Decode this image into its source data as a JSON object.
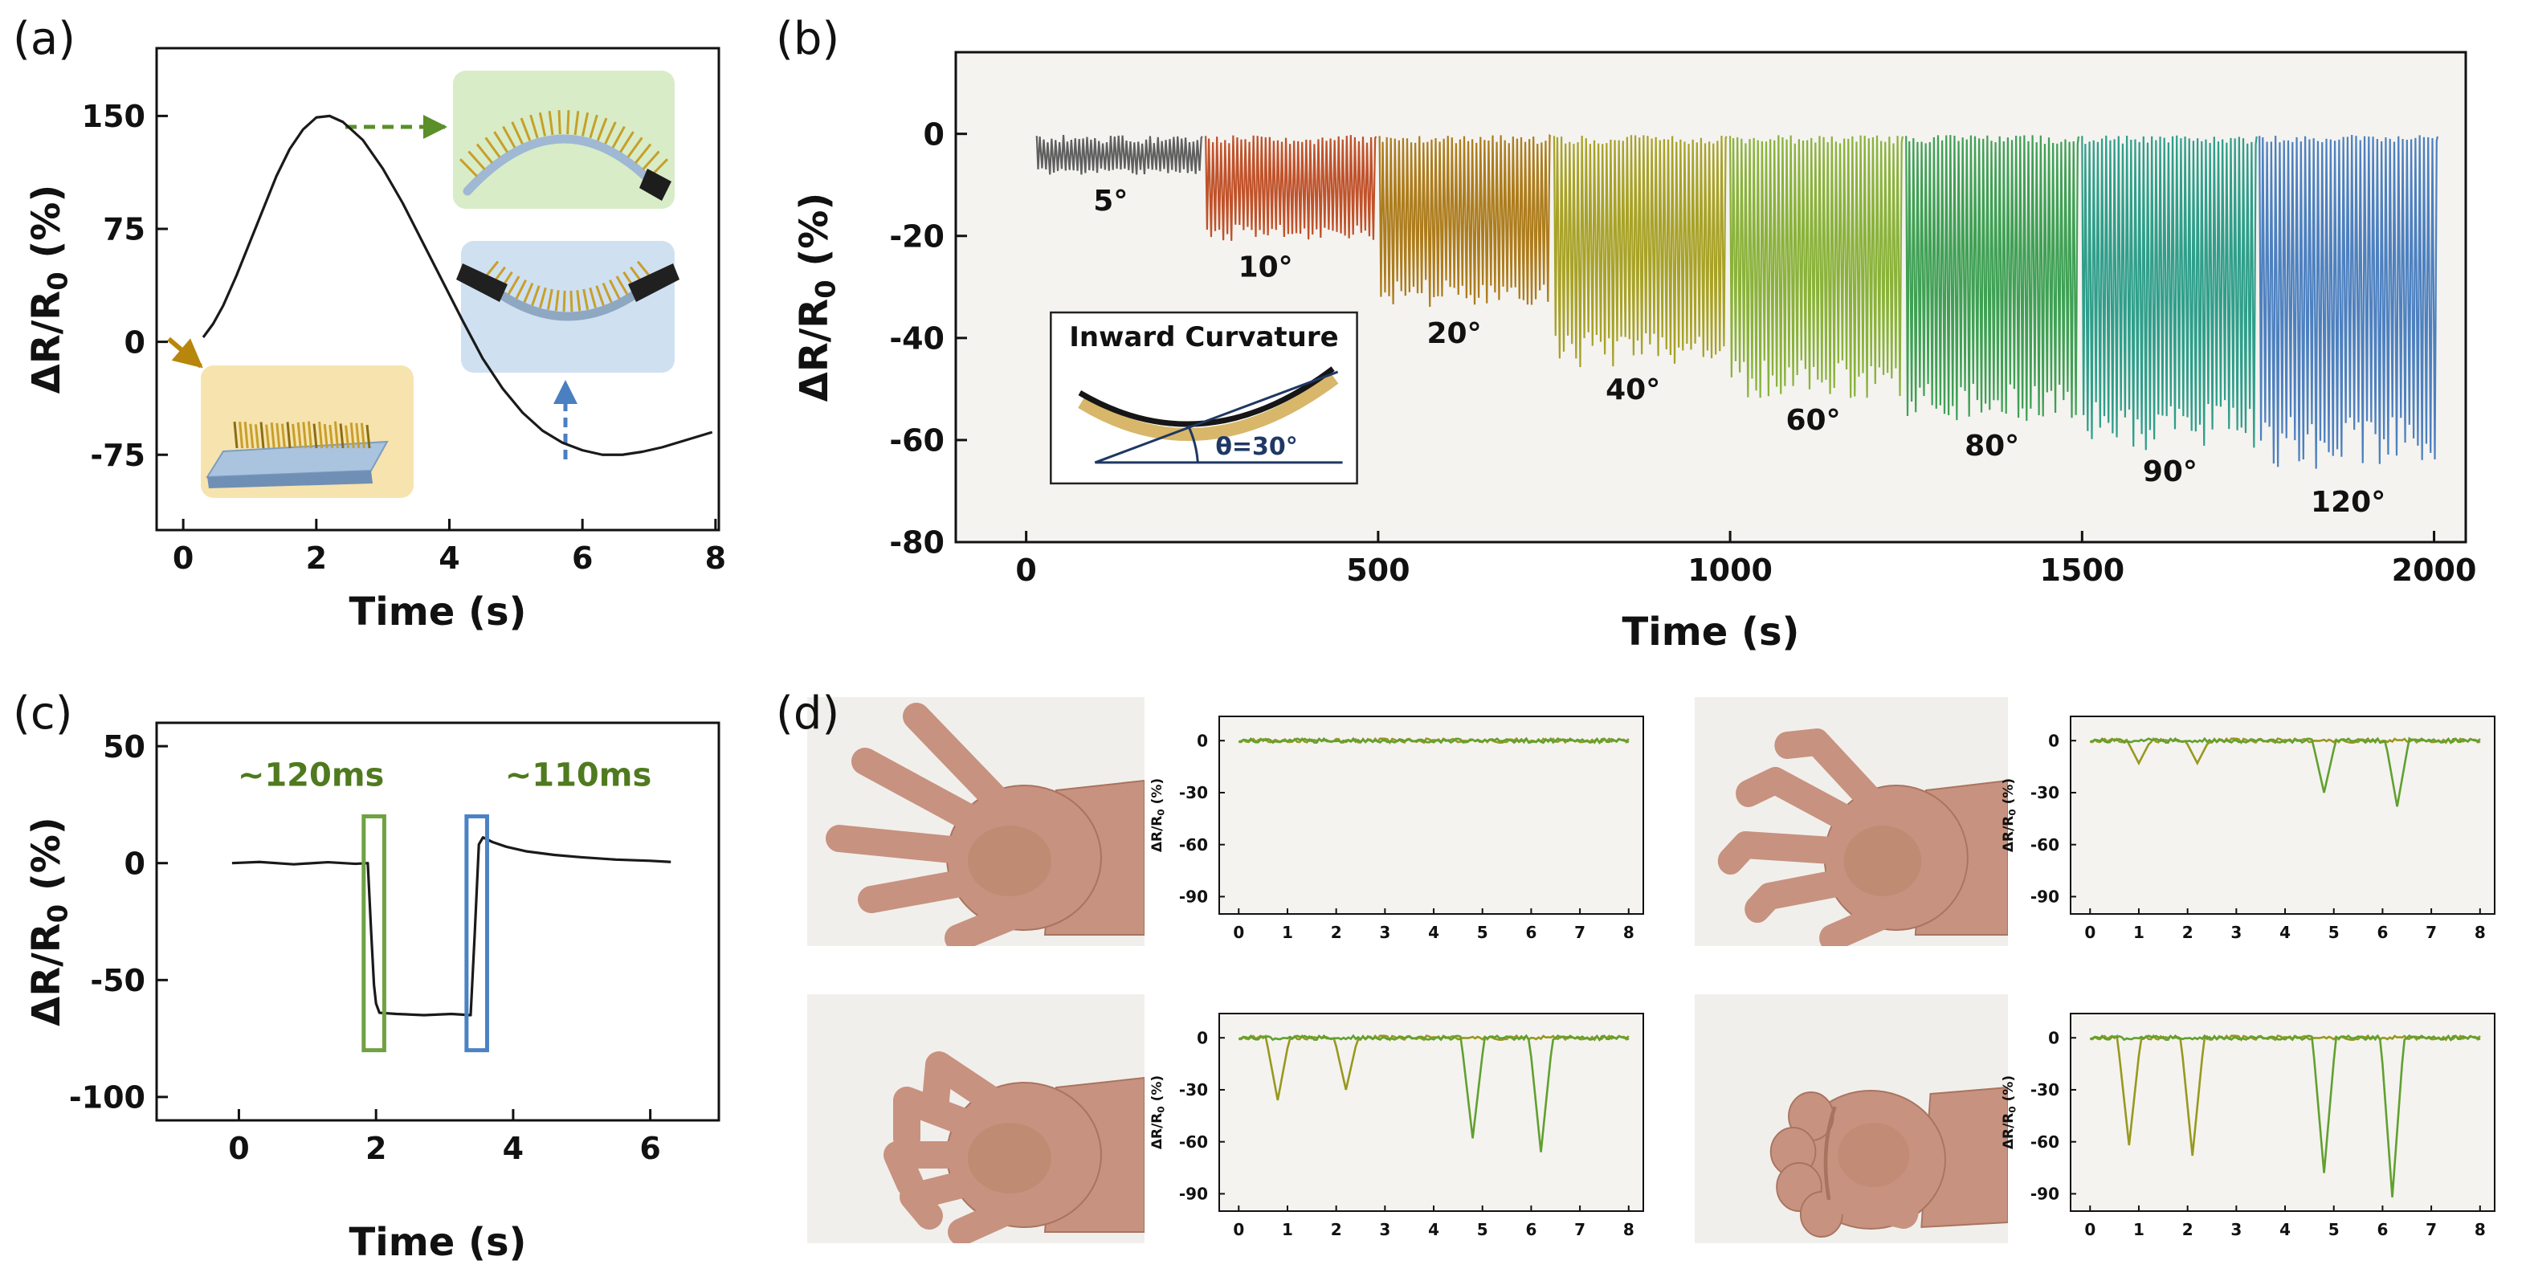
{
  "panel_labels": {
    "a": "(a)",
    "b": "(b)",
    "c": "(c)",
    "d": "(d)"
  },
  "panel_a_insets": {
    "flat_bg": "#f6e3ae",
    "outward_bg": "#d9ecc8",
    "inward_bg": "#cfe0f1",
    "flat_arrow": "#b8860b",
    "outward_arrow": "#5a8f29",
    "inward_arrow": "#4a7fc1",
    "spike_color": "#c79f2a"
  },
  "panel_d": {
    "gestures": [
      "open hand",
      "fingers slightly bent",
      "half clenched hand",
      "clenched fist"
    ]
  },
  "chart_data": [
    {
      "id": "a",
      "type": "line",
      "xlabel": "Time (s)",
      "ylabel": "ΔR/R0 (%)",
      "ylabel_parts": [
        "ΔR/R",
        "0",
        " (%)"
      ],
      "xlim": [
        -0.4,
        8.05
      ],
      "ylim": [
        -125,
        195
      ],
      "xticks": [
        0,
        2,
        4,
        6,
        8
      ],
      "yticks": [
        150,
        75,
        0,
        -75
      ],
      "line_color": "#1a1a1a",
      "points": [
        [
          0.3,
          3
        ],
        [
          0.45,
          12
        ],
        [
          0.6,
          24
        ],
        [
          0.8,
          44
        ],
        [
          1.0,
          66
        ],
        [
          1.2,
          88
        ],
        [
          1.4,
          110
        ],
        [
          1.6,
          128
        ],
        [
          1.8,
          141
        ],
        [
          2.0,
          149
        ],
        [
          2.2,
          150
        ],
        [
          2.4,
          146
        ],
        [
          2.7,
          134
        ],
        [
          3.0,
          115
        ],
        [
          3.3,
          92
        ],
        [
          3.6,
          66
        ],
        [
          3.9,
          40
        ],
        [
          4.2,
          14
        ],
        [
          4.5,
          -11
        ],
        [
          4.8,
          -31
        ],
        [
          5.1,
          -47
        ],
        [
          5.4,
          -59
        ],
        [
          5.7,
          -67
        ],
        [
          6.0,
          -72
        ],
        [
          6.3,
          -75
        ],
        [
          6.6,
          -75
        ],
        [
          6.9,
          -73
        ],
        [
          7.2,
          -70
        ],
        [
          7.5,
          -66
        ],
        [
          7.8,
          -62
        ],
        [
          7.95,
          -60
        ]
      ]
    },
    {
      "id": "b",
      "type": "cyclic_bending",
      "xlabel": "Time (s)",
      "ylabel": "ΔR/R0 (%)",
      "ylabel_parts": [
        "ΔR/R",
        "0",
        " (%)"
      ],
      "xlim": [
        -100,
        2045
      ],
      "ylim": [
        -80,
        16
      ],
      "xticks": [
        0,
        500,
        1000,
        1500,
        2000
      ],
      "yticks": [
        0,
        -20,
        -40,
        -60,
        -80
      ],
      "plot_bg": "#f4f3f0",
      "segments": [
        {
          "angle": "5°",
          "color": "#5f5f5f",
          "depth": -8,
          "start": 15,
          "end": 250,
          "cycles": 42,
          "label_x": 120,
          "label_y": -15
        },
        {
          "angle": "10°",
          "color": "#c0522a",
          "depth": -21,
          "start": 255,
          "end": 497,
          "cycles": 42,
          "label_x": 340,
          "label_y": -28
        },
        {
          "angle": "20°",
          "color": "#ad7c1c",
          "depth": -34,
          "start": 502,
          "end": 745,
          "cycles": 42,
          "label_x": 608,
          "label_y": -41
        },
        {
          "angle": "40°",
          "color": "#a8a227",
          "depth": -46,
          "start": 750,
          "end": 995,
          "cycles": 42,
          "label_x": 862,
          "label_y": -52
        },
        {
          "angle": "60°",
          "color": "#8ab23a",
          "depth": -52,
          "start": 1000,
          "end": 1245,
          "cycles": 42,
          "label_x": 1118,
          "label_y": -58
        },
        {
          "angle": "80°",
          "color": "#3fa054",
          "depth": -57,
          "start": 1250,
          "end": 1495,
          "cycles": 42,
          "label_x": 1372,
          "label_y": -63
        },
        {
          "angle": "90°",
          "color": "#2f9e8a",
          "depth": -62,
          "start": 1500,
          "end": 1748,
          "cycles": 42,
          "label_x": 1625,
          "label_y": -68
        },
        {
          "angle": "120°",
          "color": "#4d80bf",
          "depth": -66,
          "start": 1752,
          "end": 2005,
          "cycles": 42,
          "label_x": 1878,
          "label_y": -74
        }
      ],
      "inset": {
        "title": "Inward Curvature",
        "angle_label": "θ=30°",
        "line_color": "#1f3864",
        "beam_color": "#d8b76a"
      }
    },
    {
      "id": "c",
      "type": "line",
      "xlabel": "Time (s)",
      "ylabel": "ΔR/R0 (%)",
      "ylabel_parts": [
        "ΔR/R",
        "0",
        " (%)"
      ],
      "xlim": [
        -1.2,
        7.0
      ],
      "ylim": [
        -110,
        60
      ],
      "xticks": [
        0,
        2,
        4,
        6
      ],
      "yticks": [
        50,
        0,
        -50,
        -100
      ],
      "line_color": "#1a1a1a",
      "points": [
        [
          -0.1,
          0
        ],
        [
          0.3,
          0.5
        ],
        [
          0.8,
          -0.5
        ],
        [
          1.3,
          0.4
        ],
        [
          1.7,
          -0.3
        ],
        [
          1.88,
          0
        ],
        [
          1.93,
          -30
        ],
        [
          1.97,
          -52
        ],
        [
          2.0,
          -60
        ],
        [
          2.05,
          -64
        ],
        [
          2.3,
          -64.5
        ],
        [
          2.7,
          -65
        ],
        [
          3.1,
          -64.5
        ],
        [
          3.38,
          -65
        ],
        [
          3.44,
          -30
        ],
        [
          3.5,
          8
        ],
        [
          3.56,
          11
        ],
        [
          3.7,
          9
        ],
        [
          3.9,
          7
        ],
        [
          4.2,
          5
        ],
        [
          4.6,
          3.5
        ],
        [
          5.0,
          2.5
        ],
        [
          5.5,
          1.5
        ],
        [
          6.0,
          1
        ],
        [
          6.3,
          0.5
        ]
      ],
      "annotations": [
        {
          "text": "~120ms",
          "x": 1.05,
          "y": 33,
          "color": "#4f7a1f"
        },
        {
          "text": "~110ms",
          "x": 4.95,
          "y": 33,
          "color": "#4f7a1f"
        }
      ],
      "boxes": [
        {
          "x1": 1.82,
          "x2": 2.12,
          "y1": -80,
          "y2": 20,
          "color": "#70a143"
        },
        {
          "x1": 3.32,
          "x2": 3.62,
          "y1": -80,
          "y2": 20,
          "color": "#4b82c4"
        }
      ]
    },
    {
      "id": "d1",
      "type": "mini_line",
      "ylabel": "ΔR/R0 (%)",
      "ylabel_parts": [
        "ΔR/R",
        "0",
        " (%)"
      ],
      "xlim": [
        -0.4,
        8.3
      ],
      "ylim": [
        -100,
        14
      ],
      "xticks": [
        0,
        1,
        2,
        3,
        4,
        5,
        6,
        7,
        8
      ],
      "yticks": [
        0,
        -30,
        -60,
        -90
      ],
      "plot_bg": "#f4f3f0",
      "series": [
        {
          "color": "#98981f",
          "dips": []
        },
        {
          "color": "#61a02f",
          "dips": []
        }
      ]
    },
    {
      "id": "d2",
      "type": "mini_line",
      "ylabel": "ΔR/R0 (%)",
      "ylabel_parts": [
        "ΔR/R",
        "0",
        " (%)"
      ],
      "xlim": [
        -0.4,
        8.3
      ],
      "ylim": [
        -100,
        14
      ],
      "xticks": [
        0,
        1,
        2,
        3,
        4,
        5,
        6,
        7,
        8
      ],
      "yticks": [
        0,
        -30,
        -60,
        -90
      ],
      "plot_bg": "#f4f3f0",
      "series": [
        {
          "color": "#98981f",
          "dips": [
            [
              1.0,
              -13
            ],
            [
              2.2,
              -13
            ]
          ]
        },
        {
          "color": "#61a02f",
          "dips": [
            [
              4.8,
              -30
            ],
            [
              6.3,
              -38
            ]
          ]
        }
      ]
    },
    {
      "id": "d3",
      "type": "mini_line",
      "ylabel": "ΔR/R0 (%)",
      "ylabel_parts": [
        "ΔR/R",
        "0",
        " (%)"
      ],
      "xlim": [
        -0.4,
        8.3
      ],
      "ylim": [
        -100,
        14
      ],
      "xticks": [
        0,
        1,
        2,
        3,
        4,
        5,
        6,
        7,
        8
      ],
      "yticks": [
        0,
        -30,
        -60,
        -90
      ],
      "plot_bg": "#f4f3f0",
      "series": [
        {
          "color": "#98981f",
          "dips": [
            [
              0.8,
              -36
            ],
            [
              2.2,
              -30
            ]
          ]
        },
        {
          "color": "#61a02f",
          "dips": [
            [
              4.8,
              -58
            ],
            [
              6.2,
              -66
            ]
          ]
        }
      ]
    },
    {
      "id": "d4",
      "type": "mini_line",
      "ylabel": "ΔR/R0 (%)",
      "ylabel_parts": [
        "ΔR/R",
        "0",
        " (%)"
      ],
      "xlim": [
        -0.4,
        8.3
      ],
      "ylim": [
        -100,
        14
      ],
      "xticks": [
        0,
        1,
        2,
        3,
        4,
        5,
        6,
        7,
        8
      ],
      "yticks": [
        0,
        -30,
        -60,
        -90
      ],
      "plot_bg": "#f4f3f0",
      "series": [
        {
          "color": "#98981f",
          "dips": [
            [
              0.8,
              -62
            ],
            [
              2.1,
              -68
            ]
          ]
        },
        {
          "color": "#61a02f",
          "dips": [
            [
              4.8,
              -78
            ],
            [
              6.2,
              -92
            ]
          ]
        }
      ]
    }
  ]
}
